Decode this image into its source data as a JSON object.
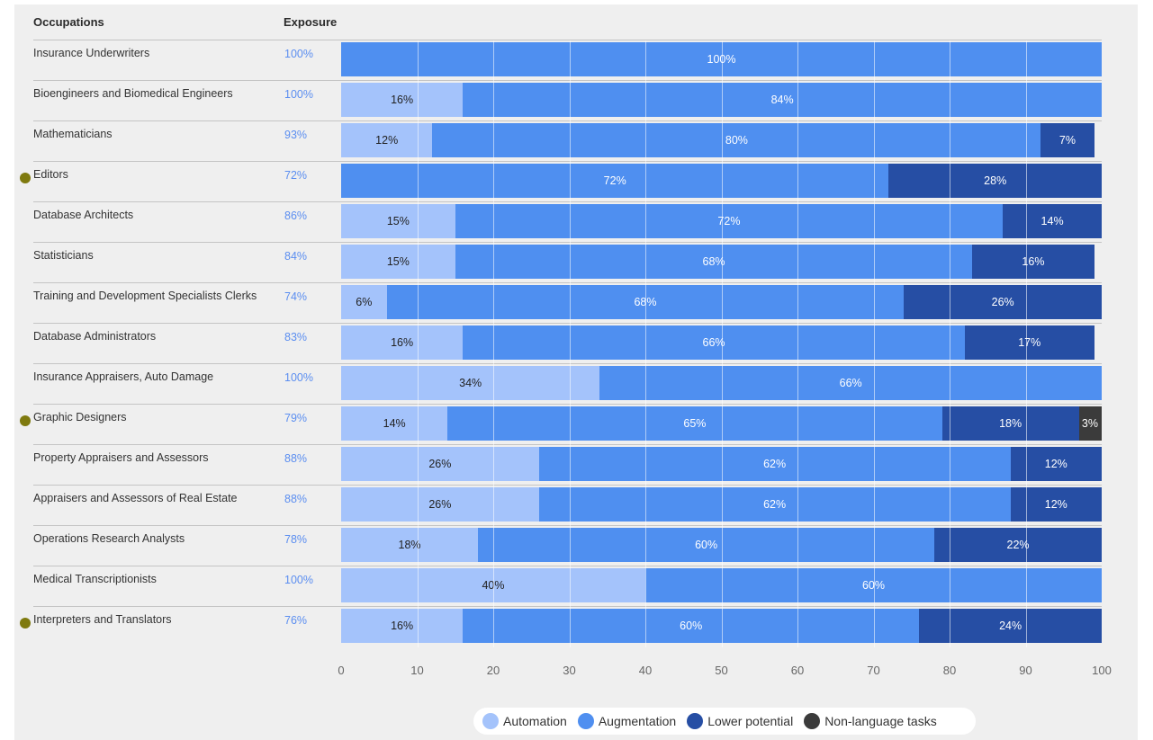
{
  "header": {
    "occupations": "Occupations",
    "exposure": "Exposure"
  },
  "chart_data": {
    "type": "bar",
    "orientation": "horizontal",
    "stacked": true,
    "xlim": [
      0,
      100
    ],
    "xticks": [
      "0",
      "10",
      "20",
      "30",
      "40",
      "50",
      "60",
      "70",
      "80",
      "90",
      "100"
    ],
    "series_colors": {
      "Automation": "#a4c3fb",
      "Augmentation": "#4f8ff0",
      "Lower potential": "#264ea4",
      "Non-language tasks": "#3b3b3b"
    },
    "rows": [
      {
        "occupation": "Insurance Underwriters",
        "exposure": "100%",
        "highlight": false,
        "segments": [
          {
            "series": "Augmentation",
            "value": 100,
            "label": "100%"
          }
        ]
      },
      {
        "occupation": "Bioengineers and Biomedical Engineers",
        "exposure": "100%",
        "highlight": false,
        "segments": [
          {
            "series": "Automation",
            "value": 16,
            "label": "16%"
          },
          {
            "series": "Augmentation",
            "value": 84,
            "label": "84%"
          }
        ]
      },
      {
        "occupation": "Mathematicians",
        "exposure": "93%",
        "highlight": false,
        "segments": [
          {
            "series": "Automation",
            "value": 12,
            "label": "12%"
          },
          {
            "series": "Augmentation",
            "value": 80,
            "label": "80%"
          },
          {
            "series": "Lower potential",
            "value": 7,
            "label": "7%"
          }
        ]
      },
      {
        "occupation": "Editors",
        "exposure": "72%",
        "highlight": true,
        "segments": [
          {
            "series": "Augmentation",
            "value": 72,
            "label": "72%"
          },
          {
            "series": "Lower potential",
            "value": 28,
            "label": "28%"
          }
        ]
      },
      {
        "occupation": "Database Architects",
        "exposure": "86%",
        "highlight": false,
        "segments": [
          {
            "series": "Automation",
            "value": 15,
            "label": "15%"
          },
          {
            "series": "Augmentation",
            "value": 72,
            "label": "72%"
          },
          {
            "series": "Lower potential",
            "value": 14,
            "label": "14%"
          }
        ]
      },
      {
        "occupation": "Statisticians",
        "exposure": "84%",
        "highlight": false,
        "segments": [
          {
            "series": "Automation",
            "value": 15,
            "label": "15%"
          },
          {
            "series": "Augmentation",
            "value": 68,
            "label": "68%"
          },
          {
            "series": "Lower potential",
            "value": 16,
            "label": "16%"
          }
        ]
      },
      {
        "occupation": "Training and Development Specialists Clerks",
        "exposure": "74%",
        "highlight": false,
        "segments": [
          {
            "series": "Automation",
            "value": 6,
            "label": "6%"
          },
          {
            "series": "Augmentation",
            "value": 68,
            "label": "68%"
          },
          {
            "series": "Lower potential",
            "value": 26,
            "label": "26%"
          }
        ]
      },
      {
        "occupation": "Database Administrators",
        "exposure": "83%",
        "highlight": false,
        "segments": [
          {
            "series": "Automation",
            "value": 16,
            "label": "16%"
          },
          {
            "series": "Augmentation",
            "value": 66,
            "label": "66%"
          },
          {
            "series": "Lower potential",
            "value": 17,
            "label": "17%"
          }
        ]
      },
      {
        "occupation": "Insurance Appraisers, Auto Damage",
        "exposure": "100%",
        "highlight": false,
        "segments": [
          {
            "series": "Automation",
            "value": 34,
            "label": "34%"
          },
          {
            "series": "Augmentation",
            "value": 66,
            "label": "66%"
          }
        ]
      },
      {
        "occupation": "Graphic Designers",
        "exposure": "79%",
        "highlight": true,
        "segments": [
          {
            "series": "Automation",
            "value": 14,
            "label": "14%"
          },
          {
            "series": "Augmentation",
            "value": 65,
            "label": "65%"
          },
          {
            "series": "Lower potential",
            "value": 18,
            "label": "18%"
          },
          {
            "series": "Non-language tasks",
            "value": 3,
            "label": "3%"
          }
        ]
      },
      {
        "occupation": "Property Appraisers and Assessors",
        "exposure": "88%",
        "highlight": false,
        "segments": [
          {
            "series": "Automation",
            "value": 26,
            "label": "26%"
          },
          {
            "series": "Augmentation",
            "value": 62,
            "label": "62%"
          },
          {
            "series": "Lower potential",
            "value": 12,
            "label": "12%"
          }
        ]
      },
      {
        "occupation": "Appraisers and Assessors of Real Estate",
        "exposure": "88%",
        "highlight": false,
        "segments": [
          {
            "series": "Automation",
            "value": 26,
            "label": "26%"
          },
          {
            "series": "Augmentation",
            "value": 62,
            "label": "62%"
          },
          {
            "series": "Lower potential",
            "value": 12,
            "label": "12%"
          }
        ]
      },
      {
        "occupation": "Operations Research Analysts",
        "exposure": "78%",
        "highlight": false,
        "segments": [
          {
            "series": "Automation",
            "value": 18,
            "label": "18%"
          },
          {
            "series": "Augmentation",
            "value": 60,
            "label": "60%"
          },
          {
            "series": "Lower potential",
            "value": 22,
            "label": "22%"
          }
        ]
      },
      {
        "occupation": "Medical Transcriptionists",
        "exposure": "100%",
        "highlight": false,
        "segments": [
          {
            "series": "Automation",
            "value": 40,
            "label": "40%"
          },
          {
            "series": "Augmentation",
            "value": 60,
            "label": "60%"
          }
        ]
      },
      {
        "occupation": "Interpreters and Translators",
        "exposure": "76%",
        "highlight": true,
        "segments": [
          {
            "series": "Automation",
            "value": 16,
            "label": "16%"
          },
          {
            "series": "Augmentation",
            "value": 60,
            "label": "60%"
          },
          {
            "series": "Lower potential",
            "value": 24,
            "label": "24%"
          }
        ]
      }
    ],
    "legend": {
      "position": "bottom",
      "items": [
        "Automation",
        "Augmentation",
        "Lower potential",
        "Non-language tasks"
      ]
    }
  }
}
